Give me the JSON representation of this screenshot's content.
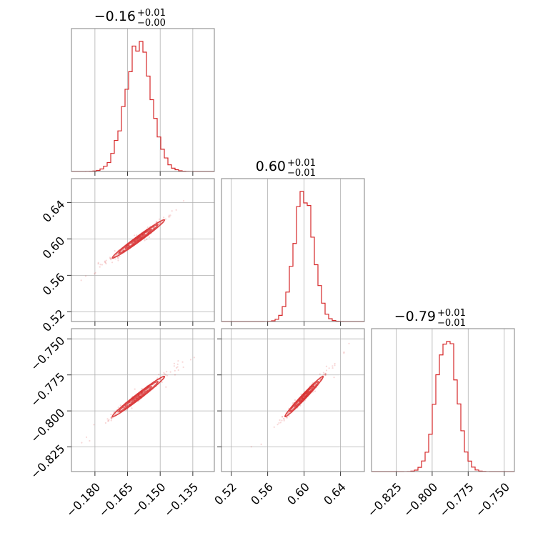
{
  "chart_data": {
    "type": "corner",
    "color": "#d62728",
    "params": [
      {
        "median": -0.16,
        "sigma": 0.006,
        "range": [
          -0.1908,
          -0.1251
        ],
        "ticks": [
          -0.18,
          -0.165,
          -0.15,
          -0.135
        ],
        "tick_labels": [
          "−0.180",
          "−0.165",
          "−0.150",
          "−0.135"
        ],
        "title": {
          "main": "−0.16",
          "plus": "+0.01",
          "minus": "−0.00"
        }
      },
      {
        "median": 0.6,
        "sigma": 0.0105,
        "range": [
          0.5093,
          0.6662
        ],
        "ticks": [
          0.52,
          0.56,
          0.6,
          0.64
        ],
        "tick_labels": [
          "0.52",
          "0.56",
          "0.60",
          "0.64"
        ],
        "title": {
          "main": "0.60",
          "plus": "+0.01",
          "minus": "−0.01"
        }
      },
      {
        "median": -0.79,
        "sigma": 0.007,
        "range": [
          -0.8421,
          -0.7429
        ],
        "ticks": [
          -0.825,
          -0.8,
          -0.775,
          -0.75
        ],
        "tick_labels": [
          "−0.825",
          "−0.800",
          "−0.775",
          "−0.750"
        ],
        "title": {
          "main": "−0.79",
          "plus": "+0.01",
          "minus": "−0.01"
        }
      }
    ],
    "correlation": 0.985,
    "grid": true,
    "histograms": "step",
    "contours": "filled-free 2D density contours with scattered samples"
  }
}
